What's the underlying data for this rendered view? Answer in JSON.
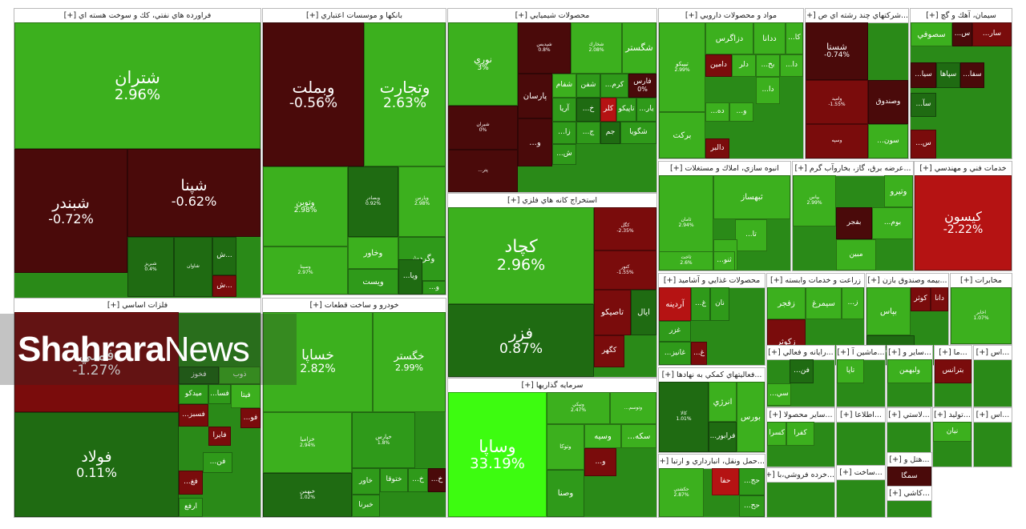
{
  "colors": {
    "gain_strong": "#3cb01e",
    "gain_mid": "#2f9a1a",
    "gain_weak": "#1f6b12",
    "gain_extreme": "#3dfc10",
    "loss_weak": "#4a0a0a",
    "loss_mid": "#7a0c0c",
    "loss_strong": "#b51313",
    "filler": "#2a8a18"
  },
  "watermark": {
    "bold": "Shahrara",
    "normal": "News"
  },
  "chart_data": {
    "type": "treemap",
    "sectors": [
      {
        "name": "فراورده هاي نفتي، كك و سوخت هسته اي [+]",
        "stocks": [
          {
            "name": "شتران",
            "change": "2.96%"
          },
          {
            "name": "شبندر",
            "change": "-0.72%"
          },
          {
            "name": "شپنا",
            "change": "-0.62%"
          },
          {
            "name": "شبريز",
            "change": "0.4%"
          },
          {
            "name": "شاوان",
            "change": ""
          },
          {
            "name": "ش...",
            "change": ""
          },
          {
            "name": "ش...",
            "change": ""
          }
        ]
      },
      {
        "name": "بانكها و موسسات اعتباري [+]",
        "stocks": [
          {
            "name": "وبملت",
            "change": "-0.56%"
          },
          {
            "name": "وتجارت",
            "change": "2.63%"
          },
          {
            "name": "وتوبن",
            "change": "2.98%"
          },
          {
            "name": "وسينا",
            "change": "2.97%"
          },
          {
            "name": "وبصادر",
            "change": "0.92%"
          },
          {
            "name": "وپارس",
            "change": "2.98%"
          },
          {
            "name": "وخاور",
            "change": ""
          },
          {
            "name": "وگردش",
            "change": ""
          },
          {
            "name": "ويست",
            "change": ""
          },
          {
            "name": "...ويا",
            "change": ""
          },
          {
            "name": "...و",
            "change": ""
          }
        ]
      },
      {
        "name": "محصولات شيميايي [+]",
        "stocks": [
          {
            "name": "نوري",
            "change": "3%"
          },
          {
            "name": "شپديس",
            "change": "0.8%"
          },
          {
            "name": "شخارك",
            "change": "2.08%"
          },
          {
            "name": "شگستر",
            "change": ""
          },
          {
            "name": "شيران",
            "change": "0%"
          },
          {
            "name": "پارسان",
            "change": ""
          },
          {
            "name": "شفام",
            "change": ""
          },
          {
            "name": "شفن",
            "change": ""
          },
          {
            "name": "...كرم",
            "change": ""
          },
          {
            "name": "فارس",
            "change": "0%"
          },
          {
            "name": "...پتر",
            "change": ""
          },
          {
            "name": "آريا",
            "change": ""
          },
          {
            "name": "...خ",
            "change": ""
          },
          {
            "name": "كلر",
            "change": ""
          },
          {
            "name": "تاپيكو",
            "change": ""
          },
          {
            "name": "...يار",
            "change": ""
          },
          {
            "name": "...و",
            "change": ""
          },
          {
            "name": "...زا",
            "change": ""
          },
          {
            "name": "...ج",
            "change": ""
          },
          {
            "name": "جم",
            "change": ""
          },
          {
            "name": "شگويا",
            "change": ""
          },
          {
            "name": "...ش",
            "change": ""
          }
        ]
      },
      {
        "name": "مواد و محصولات دارويي [+]",
        "stocks": [
          {
            "name": "تيپيكو",
            "change": "2.99%"
          },
          {
            "name": "دزاگرس",
            "change": ""
          },
          {
            "name": "ددانا",
            "change": ""
          },
          {
            "name": "...كا",
            "change": ""
          },
          {
            "name": "دامين",
            "change": ""
          },
          {
            "name": "دلر",
            "change": ""
          },
          {
            "name": "...بخ",
            "change": ""
          },
          {
            "name": "...دا",
            "change": ""
          },
          {
            "name": "بركت",
            "change": ""
          },
          {
            "name": "...ده",
            "change": ""
          },
          {
            "name": "...و",
            "change": ""
          },
          {
            "name": "...دا",
            "change": ""
          },
          {
            "name": "دالبر",
            "change": ""
          }
        ]
      },
      {
        "name": "...شركتهاي چند رشته اي ص [+]",
        "stocks": [
          {
            "name": "شستا",
            "change": "-0.74%"
          },
          {
            "name": "وصندوق",
            "change": ""
          },
          {
            "name": "وامید",
            "change": "-1.55%"
          },
          {
            "name": "...سون",
            "change": ""
          },
          {
            "name": "وسپه",
            "change": ""
          }
        ]
      },
      {
        "name": "سيمان، آهك و گچ [+]",
        "stocks": [
          {
            "name": "...سار",
            "change": ""
          },
          {
            "name": "...س",
            "change": ""
          },
          {
            "name": "سصوفي",
            "change": ""
          },
          {
            "name": "...سيا",
            "change": ""
          },
          {
            "name": "سپاها",
            "change": ""
          },
          {
            "name": "...سفا",
            "change": ""
          },
          {
            "name": "...سآ",
            "change": ""
          },
          {
            "name": "...س",
            "change": ""
          }
        ]
      },
      {
        "name": "فلزات اساسي [+]",
        "stocks": [
          {
            "name": "فملي",
            "change": "-1.27%"
          },
          {
            "name": "فولاد",
            "change": "0.11%"
          },
          {
            "name": "فخوز",
            "change": ""
          },
          {
            "name": "ذوب",
            "change": ""
          },
          {
            "name": "ميدكو",
            "change": ""
          },
          {
            "name": "...فسا",
            "change": ""
          },
          {
            "name": "فيتا",
            "change": ""
          },
          {
            "name": "...فسبز",
            "change": ""
          },
          {
            "name": "فايرا",
            "change": ""
          },
          {
            "name": "...فو",
            "change": ""
          },
          {
            "name": "...فن",
            "change": ""
          },
          {
            "name": "...فغ",
            "change": ""
          },
          {
            "name": "ارفع",
            "change": ""
          }
        ]
      },
      {
        "name": "خودرو و ساخت قطعات [+]",
        "stocks": [
          {
            "name": "خساپا",
            "change": "2.82%"
          },
          {
            "name": "خگستر",
            "change": "2.99%"
          },
          {
            "name": "خزاميا",
            "change": "2.94%"
          },
          {
            "name": "خپارس",
            "change": "1.8%"
          },
          {
            "name": "خبهمن",
            "change": "1.02%"
          },
          {
            "name": "خاور",
            "change": ""
          },
          {
            "name": "ختوقا",
            "change": ""
          },
          {
            "name": "...خ",
            "change": ""
          },
          {
            "name": "...خ",
            "change": ""
          },
          {
            "name": "خبرنا",
            "change": ""
          }
        ]
      },
      {
        "name": "استخراج كانه هاي فلزي [+]",
        "stocks": [
          {
            "name": "كچاد",
            "change": "2.96%"
          },
          {
            "name": "فزر",
            "change": "0.87%"
          },
          {
            "name": "كگل",
            "change": "-2.35%"
          },
          {
            "name": "كنور",
            "change": "-1.55%"
          },
          {
            "name": "تاصيكو",
            "change": ""
          },
          {
            "name": "ايال",
            "change": ""
          },
          {
            "name": "كگهر",
            "change": ""
          }
        ]
      },
      {
        "name": "سرمايه گذاريها [+]",
        "stocks": [
          {
            "name": "وساپا",
            "change": "33.19%"
          },
          {
            "name": "ونيكي",
            "change": "2.47%"
          },
          {
            "name": "...وتوسم",
            "change": ""
          },
          {
            "name": "وتوكا",
            "change": ""
          },
          {
            "name": "وسيه",
            "change": ""
          },
          {
            "name": "...سكه",
            "change": ""
          },
          {
            "name": "وصنا",
            "change": ""
          },
          {
            "name": "...و",
            "change": ""
          }
        ]
      },
      {
        "name": "انبوه سازي، املاك و مستغلات [+]",
        "stocks": [
          {
            "name": "ثامان",
            "change": "2.94%"
          },
          {
            "name": "ثبهساز",
            "change": ""
          },
          {
            "name": "ثاخت",
            "change": "2.6%"
          },
          {
            "name": "...تا",
            "change": ""
          },
          {
            "name": "...ثو",
            "change": ""
          },
          {
            "name": "...ثنو",
            "change": ""
          }
        ]
      },
      {
        "name": "...عرضه برق، گاز، بخاروآب گرم [+]",
        "stocks": [
          {
            "name": "بپاس",
            "change": "2.99%"
          },
          {
            "name": "وتيرو",
            "change": ""
          },
          {
            "name": "بفجر",
            "change": ""
          },
          {
            "name": "...بوم",
            "change": ""
          },
          {
            "name": "مبين",
            "change": ""
          }
        ]
      },
      {
        "name": "خدمات فني و مهندسي [+]",
        "stocks": [
          {
            "name": "كيسون",
            "change": "-2.22%"
          }
        ]
      },
      {
        "name": "محصولات غذايي و آشاميد [+]",
        "stocks": [
          {
            "name": "آردينه",
            "change": ""
          },
          {
            "name": "...غ",
            "change": ""
          },
          {
            "name": "نان",
            "change": ""
          },
          {
            "name": "غزر",
            "change": ""
          },
          {
            "name": "...غانيز",
            "change": ""
          },
          {
            "name": "...غ",
            "change": ""
          }
        ]
      },
      {
        "name": "زراعت و خدمات وابسته [+]",
        "stocks": [
          {
            "name": "زفجر",
            "change": ""
          },
          {
            "name": "سيمرغ",
            "change": ""
          },
          {
            "name": "...ز",
            "change": ""
          },
          {
            "name": "زكوثر",
            "change": ""
          }
        ]
      },
      {
        "name": "...بيمه وصندوق بازن [+]",
        "stocks": [
          {
            "name": "بپاس",
            "change": ""
          },
          {
            "name": "كوثر",
            "change": ""
          },
          {
            "name": "دانا",
            "change": ""
          },
          {
            "name": "البرز",
            "change": ""
          }
        ]
      },
      {
        "name": "مخابرات [+]",
        "stocks": [
          {
            "name": "اخابر",
            "change": "1.07%"
          }
        ]
      },
      {
        "name": "...فعاليتهاي كمكي به نهادها [+]",
        "stocks": [
          {
            "name": "كالا",
            "change": "1.01%"
          },
          {
            "name": "انرژي",
            "change": ""
          },
          {
            "name": "بورس",
            "change": ""
          },
          {
            "name": "...فرابور",
            "change": ""
          }
        ]
      },
      {
        "name": "...حمل ونقل، انبارداري و ارتبا [+]",
        "stocks": [
          {
            "name": "حكشتي",
            "change": "2.87%"
          },
          {
            "name": "حفا",
            "change": ""
          },
          {
            "name": "...حج",
            "change": ""
          },
          {
            "name": "...حح",
            "change": ""
          }
        ]
      },
      {
        "name": "...رايانه و فعالي [+]",
        "stocks": [
          {
            "name": "...فن",
            "change": ""
          },
          {
            "name": "...سي",
            "change": ""
          }
        ]
      },
      {
        "name": "...ماشين آ [+]",
        "stocks": [
          {
            "name": "تاپا",
            "change": ""
          }
        ]
      },
      {
        "name": "...ساير و [+]",
        "stocks": [
          {
            "name": "ولبهمن",
            "change": ""
          }
        ]
      },
      {
        "name": "...ما [+]",
        "stocks": [
          {
            "name": "بترانس",
            "change": ""
          }
        ]
      },
      {
        "name": "...اس [+]",
        "stocks": []
      },
      {
        "name": "...ساير محصولا [+]",
        "stocks": [
          {
            "name": "كفرا",
            "change": ""
          },
          {
            "name": "كسرا",
            "change": ""
          }
        ]
      },
      {
        "name": "...اطلاعا [+]",
        "stocks": []
      },
      {
        "name": "...لاستي [+]",
        "stocks": []
      },
      {
        "name": "...توليد [+]",
        "stocks": [
          {
            "name": "نيان",
            "change": ""
          }
        ]
      },
      {
        "name": "...اس [+]",
        "stocks": []
      },
      {
        "name": "...خرده فروشي،با [+]",
        "stocks": []
      },
      {
        "name": "...ساخت [+]",
        "stocks": []
      },
      {
        "name": "...هتل و [+]",
        "stocks": [
          {
            "name": "سمگا",
            "change": ""
          }
        ]
      },
      {
        "name": "...كاشي [+]",
        "stocks": []
      }
    ]
  }
}
